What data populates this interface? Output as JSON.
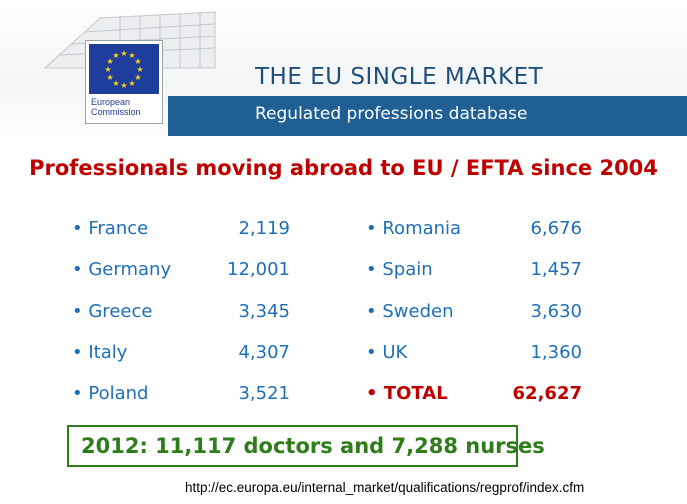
{
  "header": {
    "title": "THE EU SINGLE MARKET",
    "subtitle": "Regulated professions database",
    "logo": {
      "org_line1": "European",
      "org_line2": "Commission"
    },
    "colors": {
      "banner_blue": "#1f5f94",
      "flag_blue": "#1f3d9a",
      "star_yellow": "#ffd617"
    }
  },
  "headline": "Professionals moving abroad to EU / EFTA since 2004",
  "countries_left": [
    {
      "bullet": "•",
      "name": "France",
      "value": "2,119"
    },
    {
      "bullet": "•",
      "name": "Germany",
      "value": "12,001"
    },
    {
      "bullet": "•",
      "name": "Greece",
      "value": "3,345"
    },
    {
      "bullet": "•",
      "name": "Italy",
      "value": "4,307"
    },
    {
      "bullet": "•",
      "name": "Poland",
      "value": "3,521"
    }
  ],
  "countries_right": [
    {
      "bullet": "•",
      "name": "Romania",
      "value": "6,676"
    },
    {
      "bullet": "•",
      "name": "Spain",
      "value": "1,457"
    },
    {
      "bullet": "•",
      "name": "Sweden",
      "value": "3,630"
    },
    {
      "bullet": "•",
      "name": "UK",
      "value": "1,360"
    },
    {
      "bullet": "•",
      "name": "TOTAL",
      "value": "62,627"
    }
  ],
  "highlight": "2012:  11,117 doctors and 7,288 nurses",
  "source_url": "http://ec.europa.eu/internal_market/qualifications/regprof/index.cfm"
}
